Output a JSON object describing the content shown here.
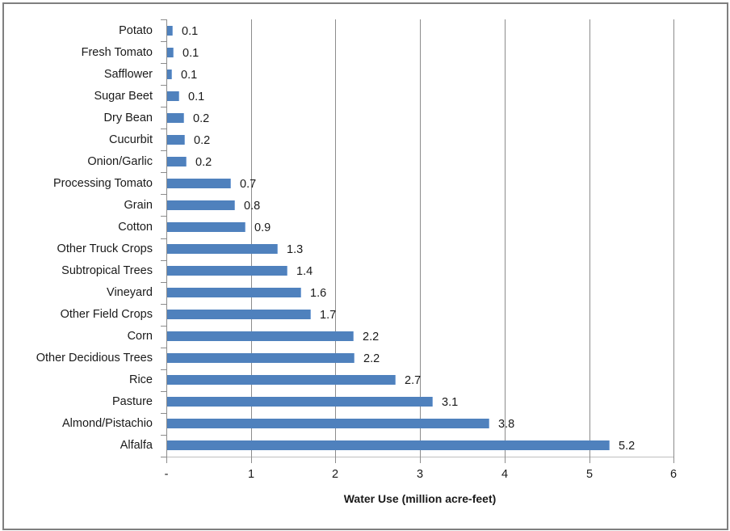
{
  "chart_data": {
    "type": "bar",
    "orientation": "horizontal",
    "title": "",
    "xlabel": "Water Use (million acre-feet)",
    "ylabel": "",
    "xlim": [
      0,
      6
    ],
    "x_ticks": [
      "-",
      "1",
      "2",
      "3",
      "4",
      "5",
      "6"
    ],
    "grid": {
      "vertical": true,
      "horizontal": false
    },
    "legend": null,
    "bar_color": "#4f81bd",
    "categories": [
      "Potato",
      "Fresh Tomato",
      "Safflower",
      "Sugar Beet",
      "Dry Bean",
      "Cucurbit",
      "Onion/Garlic",
      "Processing Tomato",
      "Grain",
      "Cotton",
      "Other Truck Crops",
      "Subtropical Trees",
      "Vineyard",
      "Other Field Crops",
      "Corn",
      "Other Decidious Trees",
      "Rice",
      "Pasture",
      "Almond/Pistachio",
      "Alfalfa"
    ],
    "values": [
      0.07,
      0.08,
      0.06,
      0.14,
      0.2,
      0.21,
      0.23,
      0.75,
      0.8,
      0.93,
      1.31,
      1.42,
      1.59,
      1.7,
      2.21,
      2.22,
      2.7,
      3.14,
      3.81,
      5.23
    ],
    "data_labels": [
      "0.1",
      "0.1",
      "0.1",
      "0.1",
      "0.2",
      "0.2",
      "0.2",
      "0.7",
      "0.8",
      "0.9",
      "1.3",
      "1.4",
      "1.6",
      "1.7",
      "2.2",
      "2.2",
      "2.7",
      "3.1",
      "3.8",
      "5.2"
    ]
  }
}
